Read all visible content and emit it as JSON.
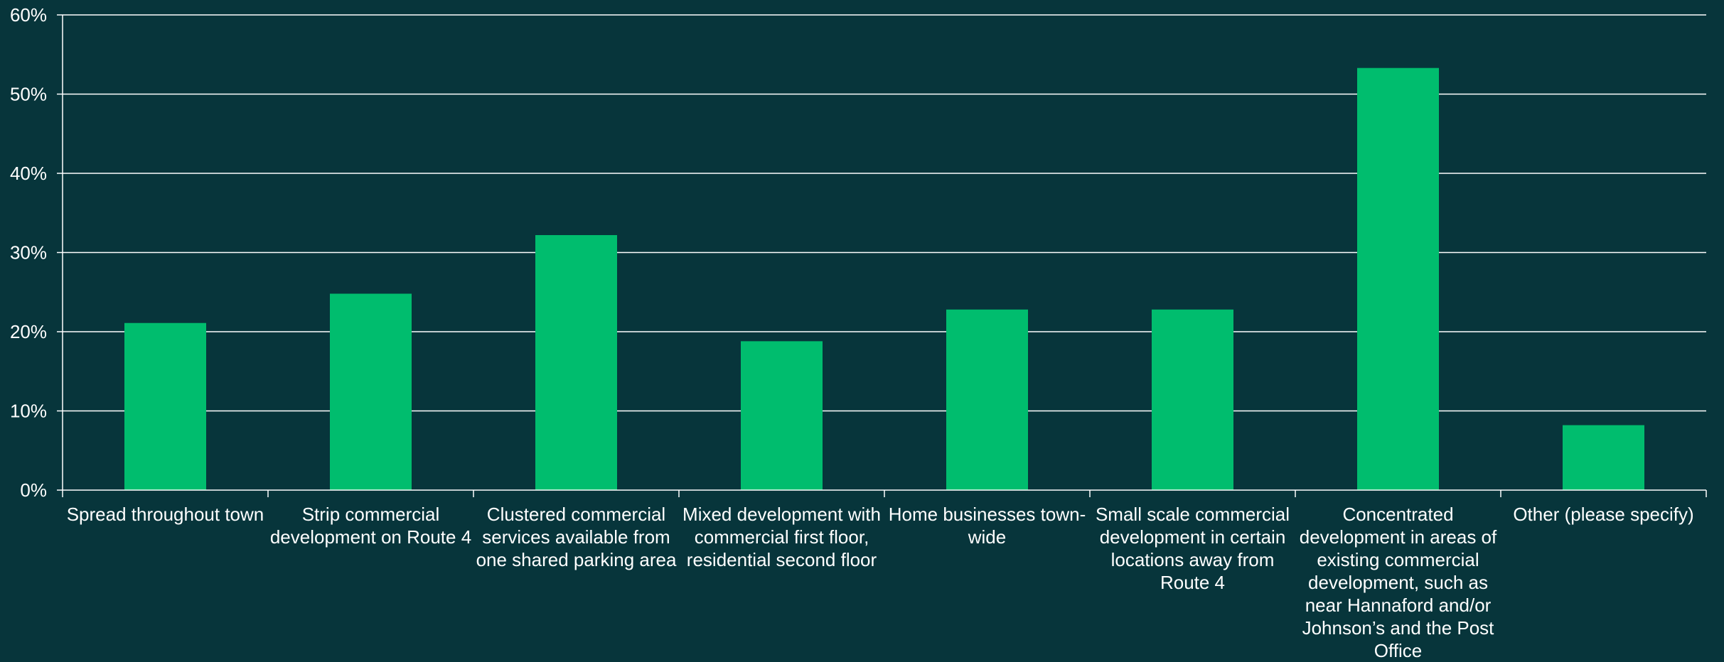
{
  "chart_data": {
    "type": "bar",
    "title": "",
    "xlabel": "",
    "ylabel": "",
    "ylim": [
      0,
      0.6
    ],
    "yticks": [
      0,
      0.1,
      0.2,
      0.3,
      0.4,
      0.5,
      0.6
    ],
    "ytick_labels": [
      "0%",
      "10%",
      "20%",
      "30%",
      "40%",
      "50%",
      "60%"
    ],
    "grid": true,
    "legend": "none",
    "categories": [
      "Spread throughout town",
      "Strip commercial development on Route 4",
      "Clustered commercial services available from one shared parking area",
      "Mixed development with commercial first floor, residential second floor",
      "Home businesses town-wide",
      "Small scale commercial development in certain locations away from Route 4",
      "Concentrated development in areas of existing commercial development, such as near Hannaford and/or Johnson’s and the Post Office",
      "Other (please specify)"
    ],
    "values": [
      0.211,
      0.248,
      0.322,
      0.188,
      0.228,
      0.228,
      0.533,
      0.082
    ],
    "colors": {
      "bar": "#00bd6e",
      "background": "#07353b",
      "grid": "#ffffff",
      "text": "#ffffff"
    }
  }
}
